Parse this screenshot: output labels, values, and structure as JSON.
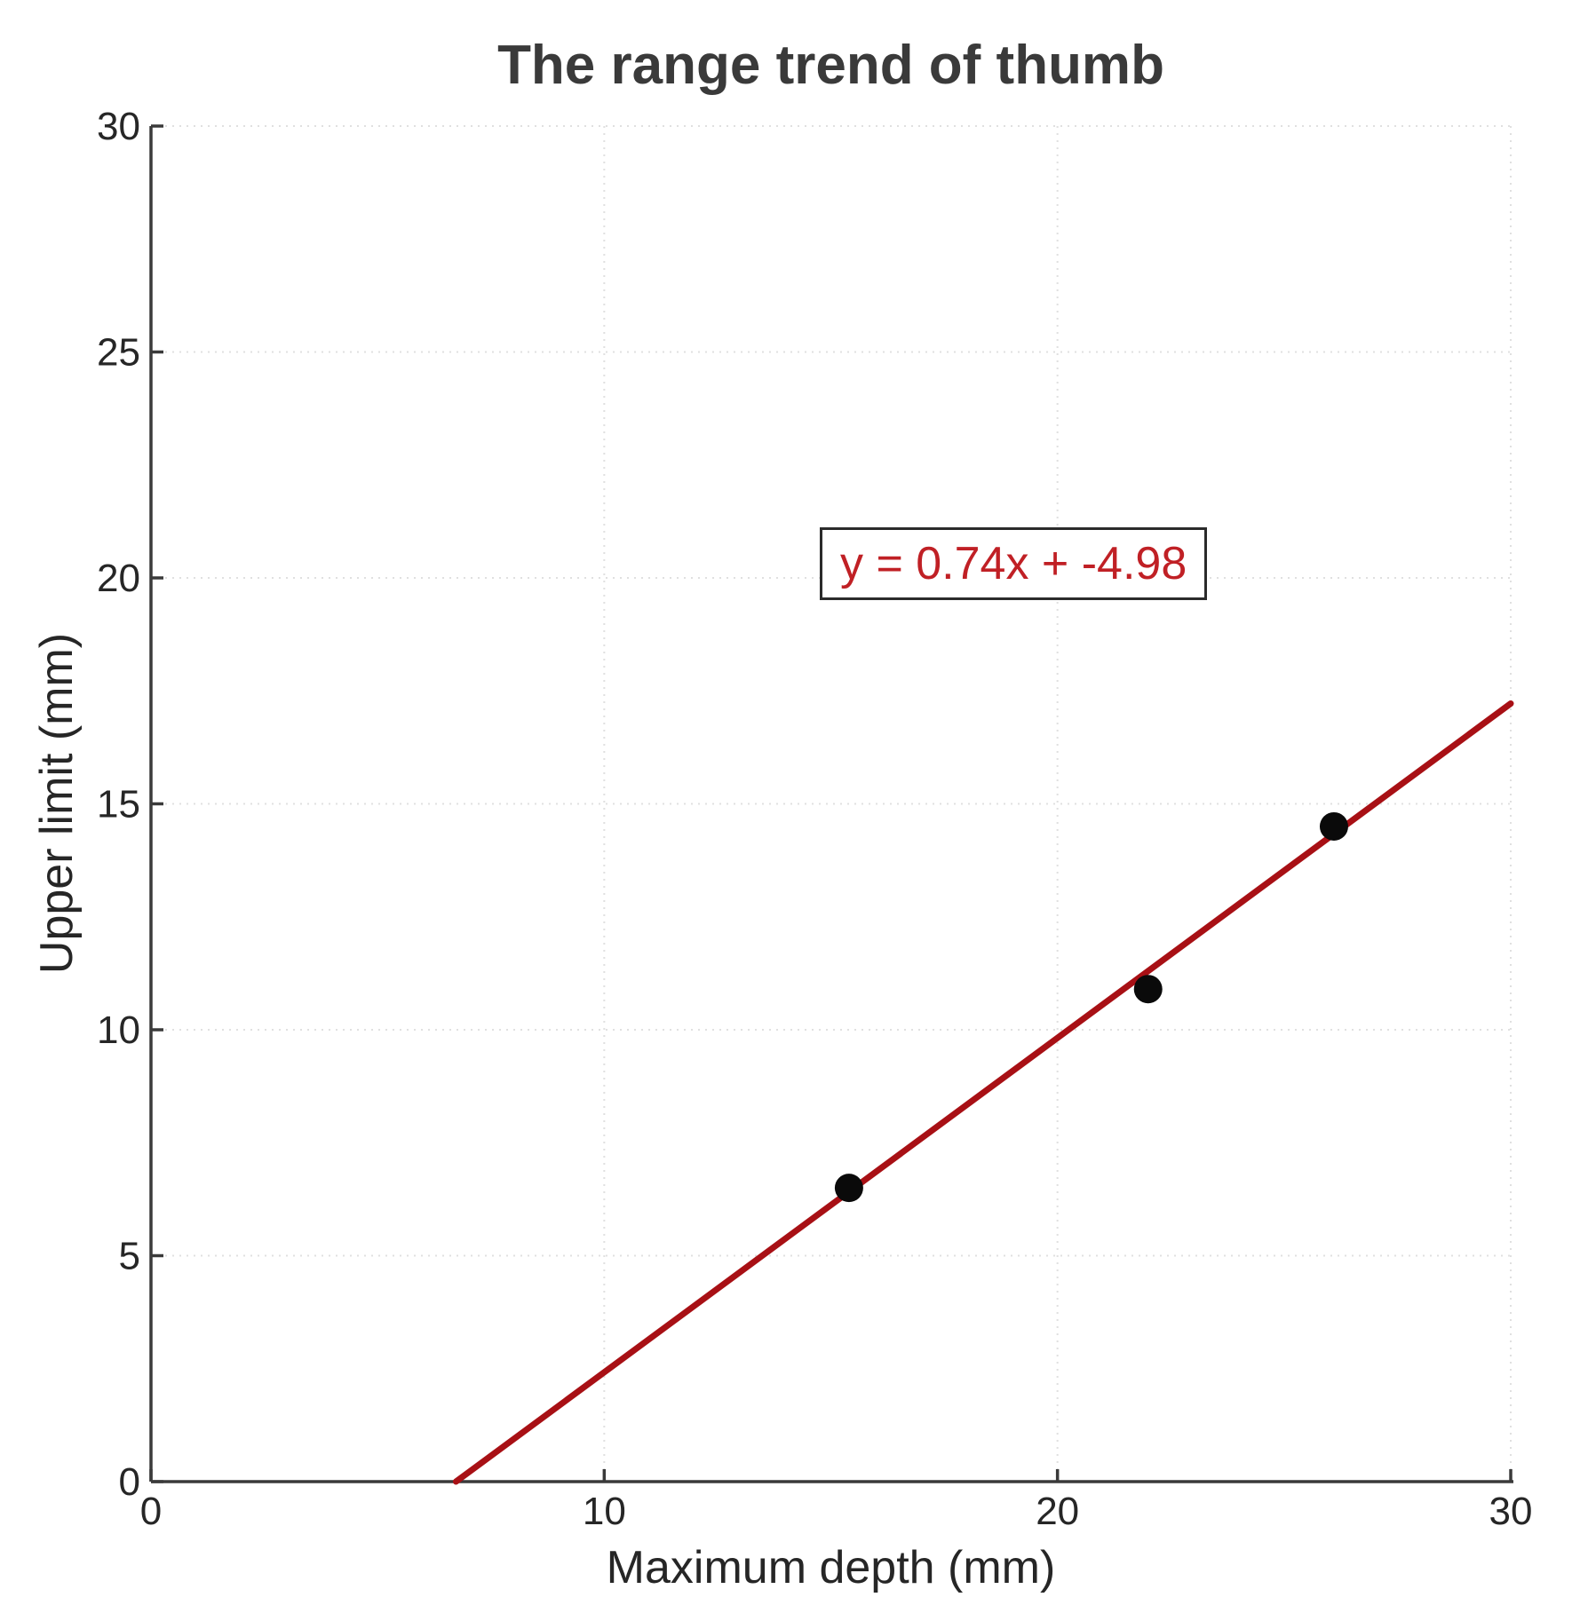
{
  "chart_data": {
    "type": "scatter",
    "title": "The range trend of thumb",
    "xlabel": "Maximum depth (mm)",
    "ylabel": "Upper limit (mm)",
    "xlim": [
      0,
      30
    ],
    "ylim": [
      0,
      30
    ],
    "x_ticks": [
      0,
      10,
      20,
      30
    ],
    "y_ticks": [
      0,
      5,
      10,
      15,
      20,
      25,
      30
    ],
    "grid": "dotted",
    "legend": "none",
    "spines": [
      "left",
      "bottom"
    ],
    "points": [
      [
        15.4,
        6.5
      ],
      [
        22.0,
        10.9
      ],
      [
        26.1,
        14.5
      ]
    ],
    "trend_line": {
      "slope": 0.74,
      "intercept": -4.98,
      "x_start": 6.73,
      "x_end": 30
    },
    "annotation": {
      "text": "y = 0.74x + -4.98",
      "x": 19.1,
      "y": 20.3
    },
    "colors": {
      "trend_line": "#a81015",
      "annotation_text": "#c02025",
      "annotation_border": "#2b2b2b",
      "point": "#0a0a0a",
      "grid": "#e0e0e0",
      "axis": "#3a3a3a",
      "tick_label": "#262626",
      "title": "#3a3a3a"
    }
  }
}
